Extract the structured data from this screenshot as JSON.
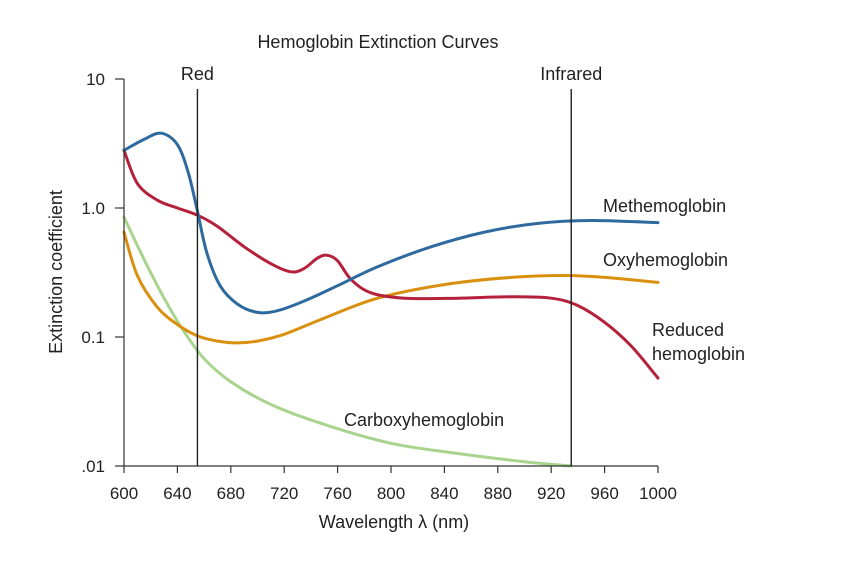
{
  "chart_data": {
    "type": "line",
    "title": "Hemoglobin Extinction Curves",
    "xlabel": "Wavelength λ (nm)",
    "ylabel": "Extinction coefficient",
    "xlim": [
      600,
      1000
    ],
    "ylim": [
      0.01,
      10
    ],
    "yscale": "log",
    "grid": false,
    "x_ticks": [
      600,
      640,
      680,
      720,
      760,
      800,
      840,
      880,
      920,
      960,
      1000
    ],
    "x_tick_labels": [
      "600",
      "640",
      "680",
      "720",
      "760",
      "800",
      "840",
      "880",
      "920",
      "960",
      "1000"
    ],
    "y_ticks": [
      0.01,
      0.1,
      1,
      10
    ],
    "y_tick_labels": [
      ".01",
      "0.1",
      "1.0",
      "10"
    ],
    "markers": [
      {
        "label": "Red",
        "x": 655
      },
      {
        "label": "Infrared",
        "x": 935
      }
    ],
    "series": [
      {
        "name": "Methemoglobin",
        "color": "#2e6a9e",
        "x": [
          600,
          615,
          628,
          640,
          648,
          655,
          662,
          672,
          685,
          700,
          715,
          735,
          760,
          790,
          830,
          870,
          910,
          950,
          1000
        ],
        "y": [
          2.8,
          3.4,
          3.8,
          3.1,
          1.9,
          0.95,
          0.45,
          0.25,
          0.18,
          0.155,
          0.16,
          0.19,
          0.25,
          0.35,
          0.5,
          0.65,
          0.76,
          0.8,
          0.77
        ]
      },
      {
        "name": "Oxyhemoglobin",
        "color": "#d9900f",
        "x": [
          600,
          610,
          625,
          640,
          655,
          670,
          685,
          700,
          720,
          750,
          790,
          840,
          890,
          930,
          960,
          1000
        ],
        "y": [
          0.65,
          0.3,
          0.17,
          0.125,
          0.102,
          0.093,
          0.09,
          0.093,
          0.105,
          0.14,
          0.2,
          0.255,
          0.29,
          0.3,
          0.29,
          0.265
        ]
      },
      {
        "name": "Reduced hemoglobin",
        "color": "#b5213b",
        "x": [
          600,
          610,
          625,
          640,
          655,
          670,
          690,
          710,
          725,
          735,
          745,
          752,
          760,
          770,
          785,
          810,
          850,
          890,
          920,
          940,
          960,
          980,
          1000
        ],
        "y": [
          2.8,
          1.55,
          1.15,
          1.0,
          0.88,
          0.72,
          0.5,
          0.37,
          0.32,
          0.34,
          0.41,
          0.43,
          0.39,
          0.28,
          0.22,
          0.2,
          0.2,
          0.205,
          0.2,
          0.175,
          0.13,
          0.085,
          0.048
        ]
      },
      {
        "name": "Carboxyhemoglobin",
        "color": "#a9d48e",
        "x": [
          600,
          615,
          630,
          645,
          660,
          680,
          710,
          750,
          800,
          850,
          900,
          935
        ],
        "y": [
          0.85,
          0.4,
          0.2,
          0.11,
          0.068,
          0.045,
          0.03,
          0.021,
          0.015,
          0.0125,
          0.0108,
          0.01
        ]
      }
    ],
    "series_labels": [
      {
        "series": 0,
        "lines": [
          "Methemoglobin"
        ]
      },
      {
        "series": 1,
        "lines": [
          "Oxyhemoglobin"
        ]
      },
      {
        "series": 2,
        "lines": [
          "Reduced",
          "hemoglobin"
        ]
      },
      {
        "series": 3,
        "lines": [
          "Carboxyhemoglobin"
        ]
      }
    ]
  }
}
